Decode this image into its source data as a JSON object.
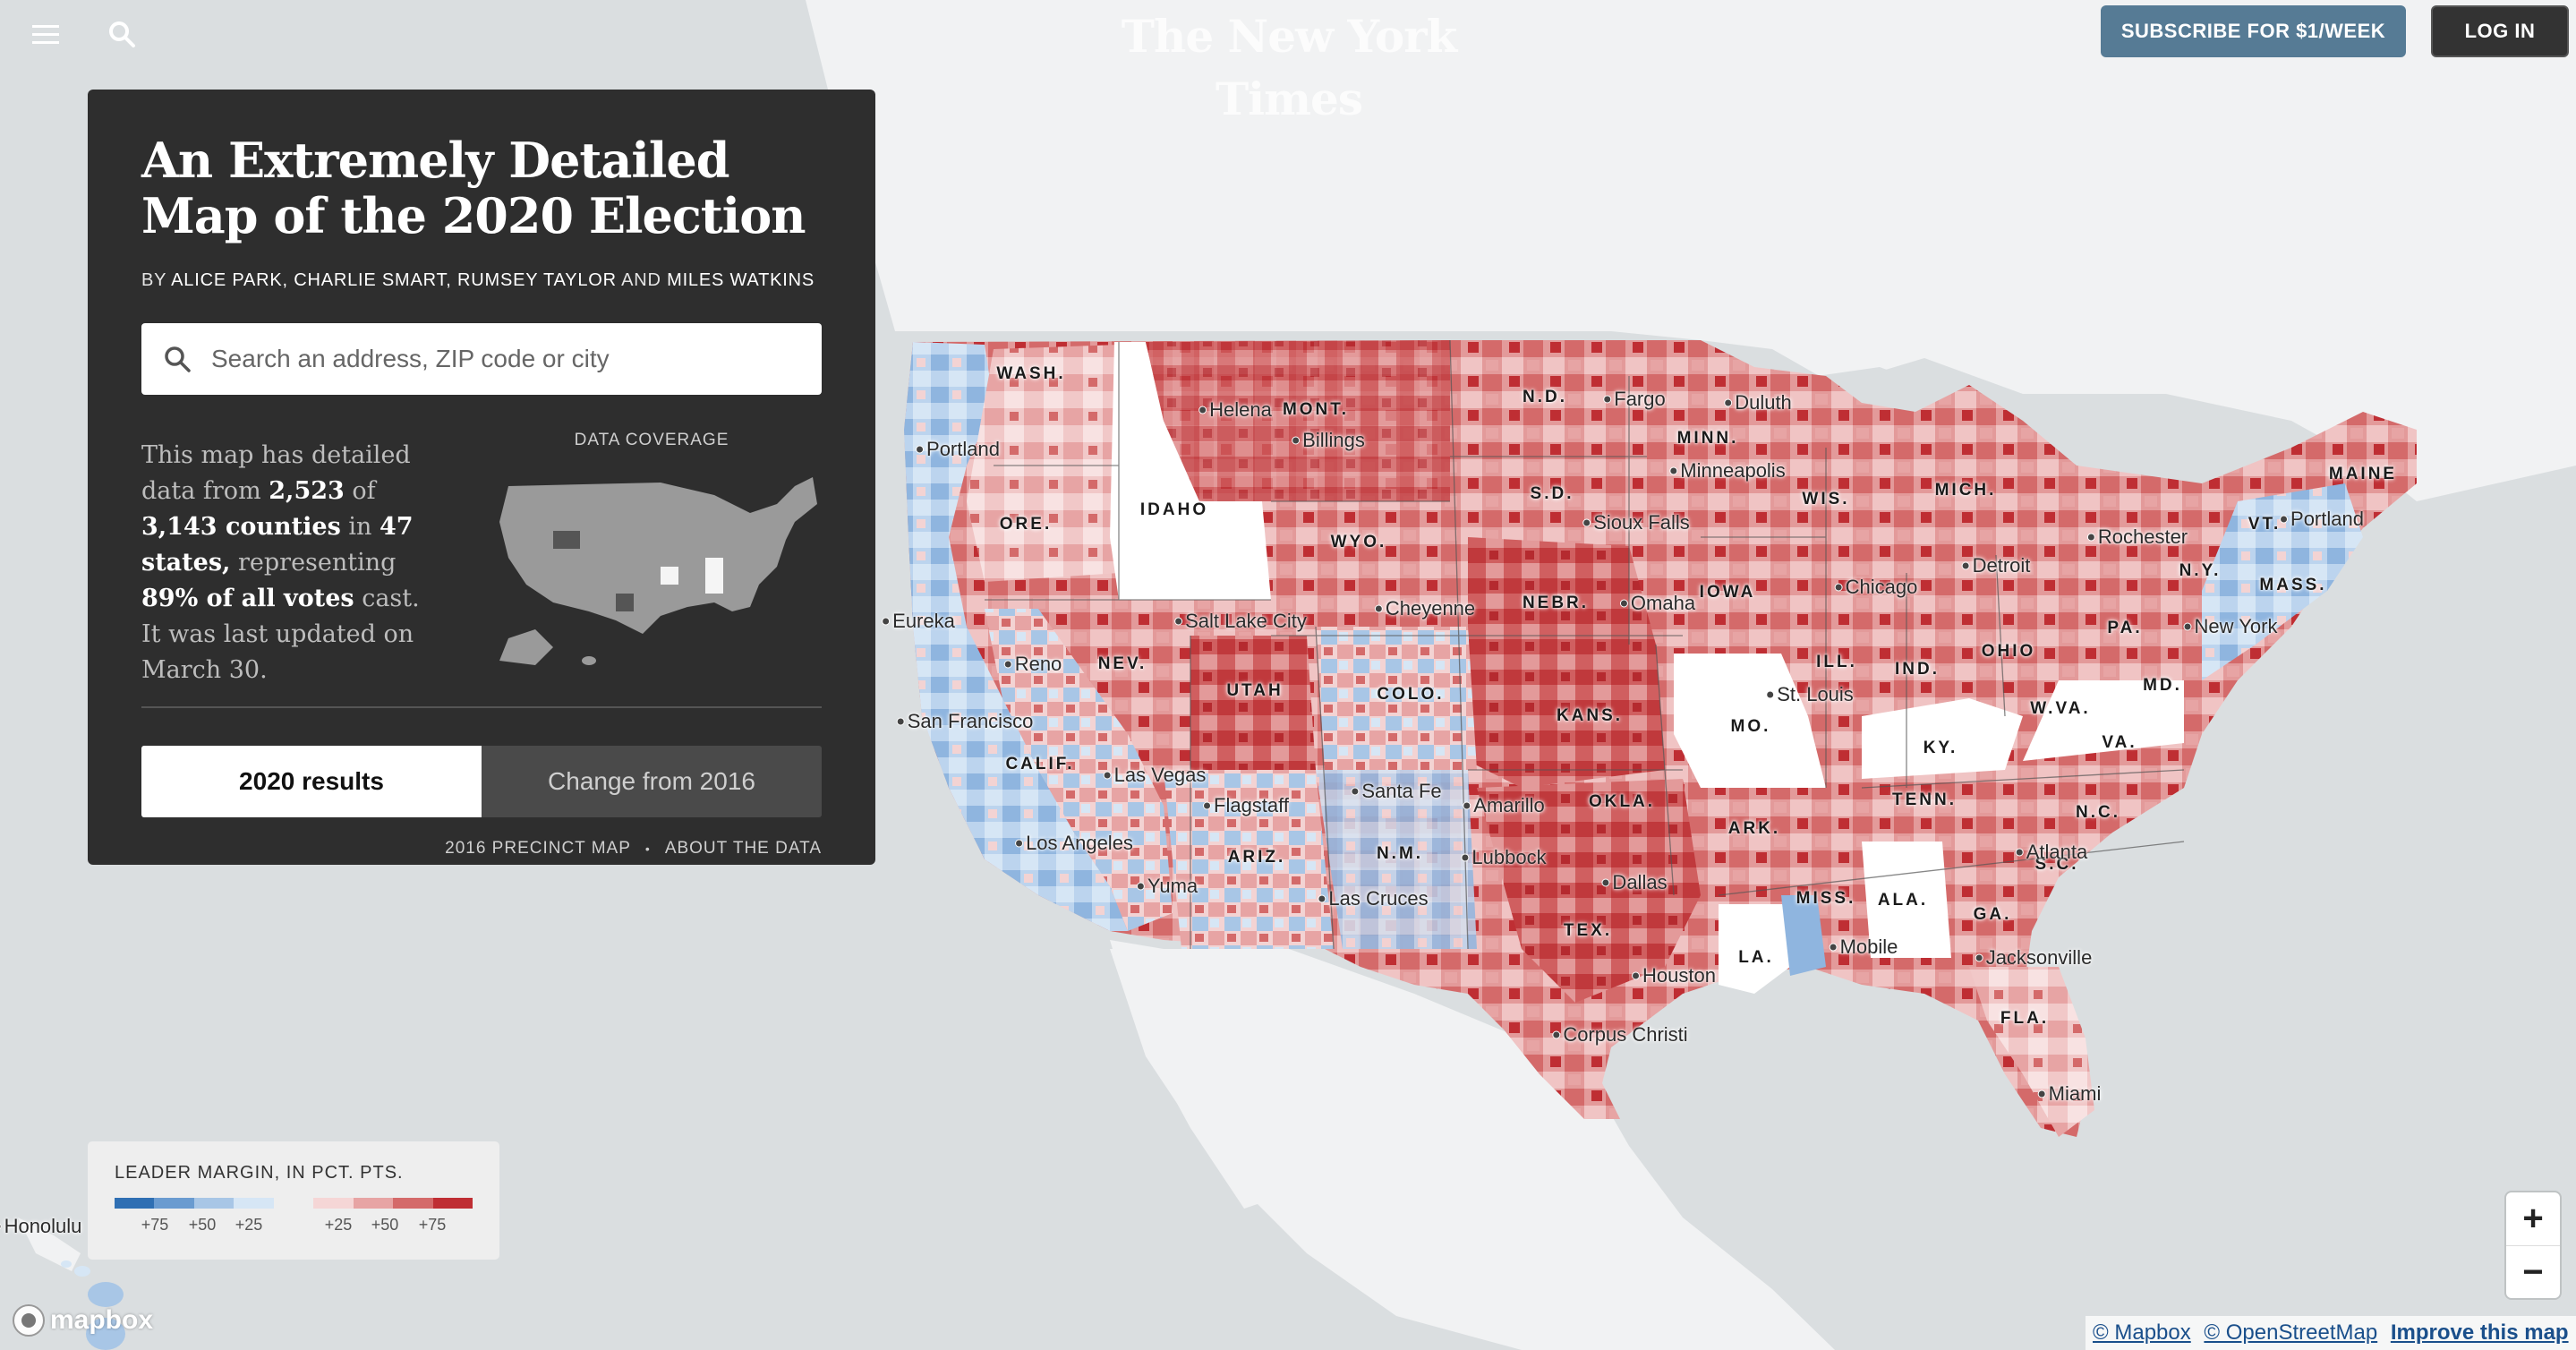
{
  "header": {
    "masthead": "The New York Times",
    "subscribe_label": "SUBSCRIBE FOR $1/WEEK",
    "login_label": "LOG IN"
  },
  "panel": {
    "title": "An Extremely Detailed Map of the 2020 Election",
    "byline_prefix": "BY ",
    "byline_names": "ALICE PARK, CHARLIE SMART, RUMSEY TAYLOR",
    "byline_and": " AND ",
    "byline_last": "MILES WATKINS",
    "search_placeholder": "Search an address, ZIP code or city",
    "coverage": {
      "t1": "This map has detailed data from ",
      "counties_covered": "2,523",
      "t2": " of ",
      "counties_total": "3,143 counties",
      "t3": " in ",
      "states": "47 states,",
      "t4": " representing ",
      "votes_share": "89% of all votes",
      "t5": " cast. It was last updated on March 30.",
      "label": "DATA COVERAGE"
    },
    "mode_current": "2020 results",
    "mode_change": "Change from 2016",
    "link_2016": "2016 PRECINCT MAP",
    "link_sep": "•",
    "link_about": "ABOUT THE DATA"
  },
  "legend": {
    "title": "LEADER MARGIN, IN PCT. PTS.",
    "dem_colors": [
      "#2f6fb3",
      "#6a9bd0",
      "#a8c6e6",
      "#d6e6f5"
    ],
    "rep_colors": [
      "#f5d6d6",
      "#e7a4a4",
      "#d46a6a",
      "#bf2e33"
    ],
    "ticks_dem": [
      "+75",
      "+50",
      "+25"
    ],
    "ticks_rep": [
      "+25",
      "+50",
      "+75"
    ]
  },
  "zoom": {
    "in_label": "+",
    "out_label": "−"
  },
  "attribution": {
    "logo": "mapbox",
    "mapbox": "© Mapbox",
    "osm": "© OpenStreetMap",
    "improve": "Improve this map"
  },
  "map_labels": {
    "states": [
      "WASH.",
      "ORE.",
      "IDAHO",
      "MONT.",
      "WYO.",
      "N.D.",
      "S.D.",
      "NEBR.",
      "MINN.",
      "IOWA",
      "WIS.",
      "MICH.",
      "ILL.",
      "IND.",
      "OHIO",
      "PA.",
      "N.Y.",
      "VT.",
      "MAINE",
      "MASS.",
      "MD.",
      "W.VA.",
      "VA.",
      "KY.",
      "TENN.",
      "N.C.",
      "S.C.",
      "GA.",
      "ALA.",
      "MISS.",
      "LA.",
      "ARK.",
      "MO.",
      "KANS.",
      "OKLA.",
      "TEX.",
      "N.M.",
      "COLO.",
      "UTAH",
      "NEV.",
      "CALIF.",
      "ARIZ.",
      "FLA."
    ],
    "cities": [
      "Portland",
      "Helena",
      "Billings",
      "Fargo",
      "Duluth",
      "Minneapolis",
      "Sioux Falls",
      "Omaha",
      "Chicago",
      "Detroit",
      "Rochester",
      "Portland",
      "New York",
      "Eureka",
      "Reno",
      "Salt Lake City",
      "Cheyenne",
      "St. Louis",
      "San Francisco",
      "Las Vegas",
      "Flagstaff",
      "Santa Fe",
      "Amarillo",
      "Lubbock",
      "Los Angeles",
      "Yuma",
      "Las Cruces",
      "Dallas",
      "Atlanta",
      "Mobile",
      "Jacksonville",
      "Houston",
      "Corpus Christi",
      "Miami",
      "Honolulu"
    ]
  }
}
